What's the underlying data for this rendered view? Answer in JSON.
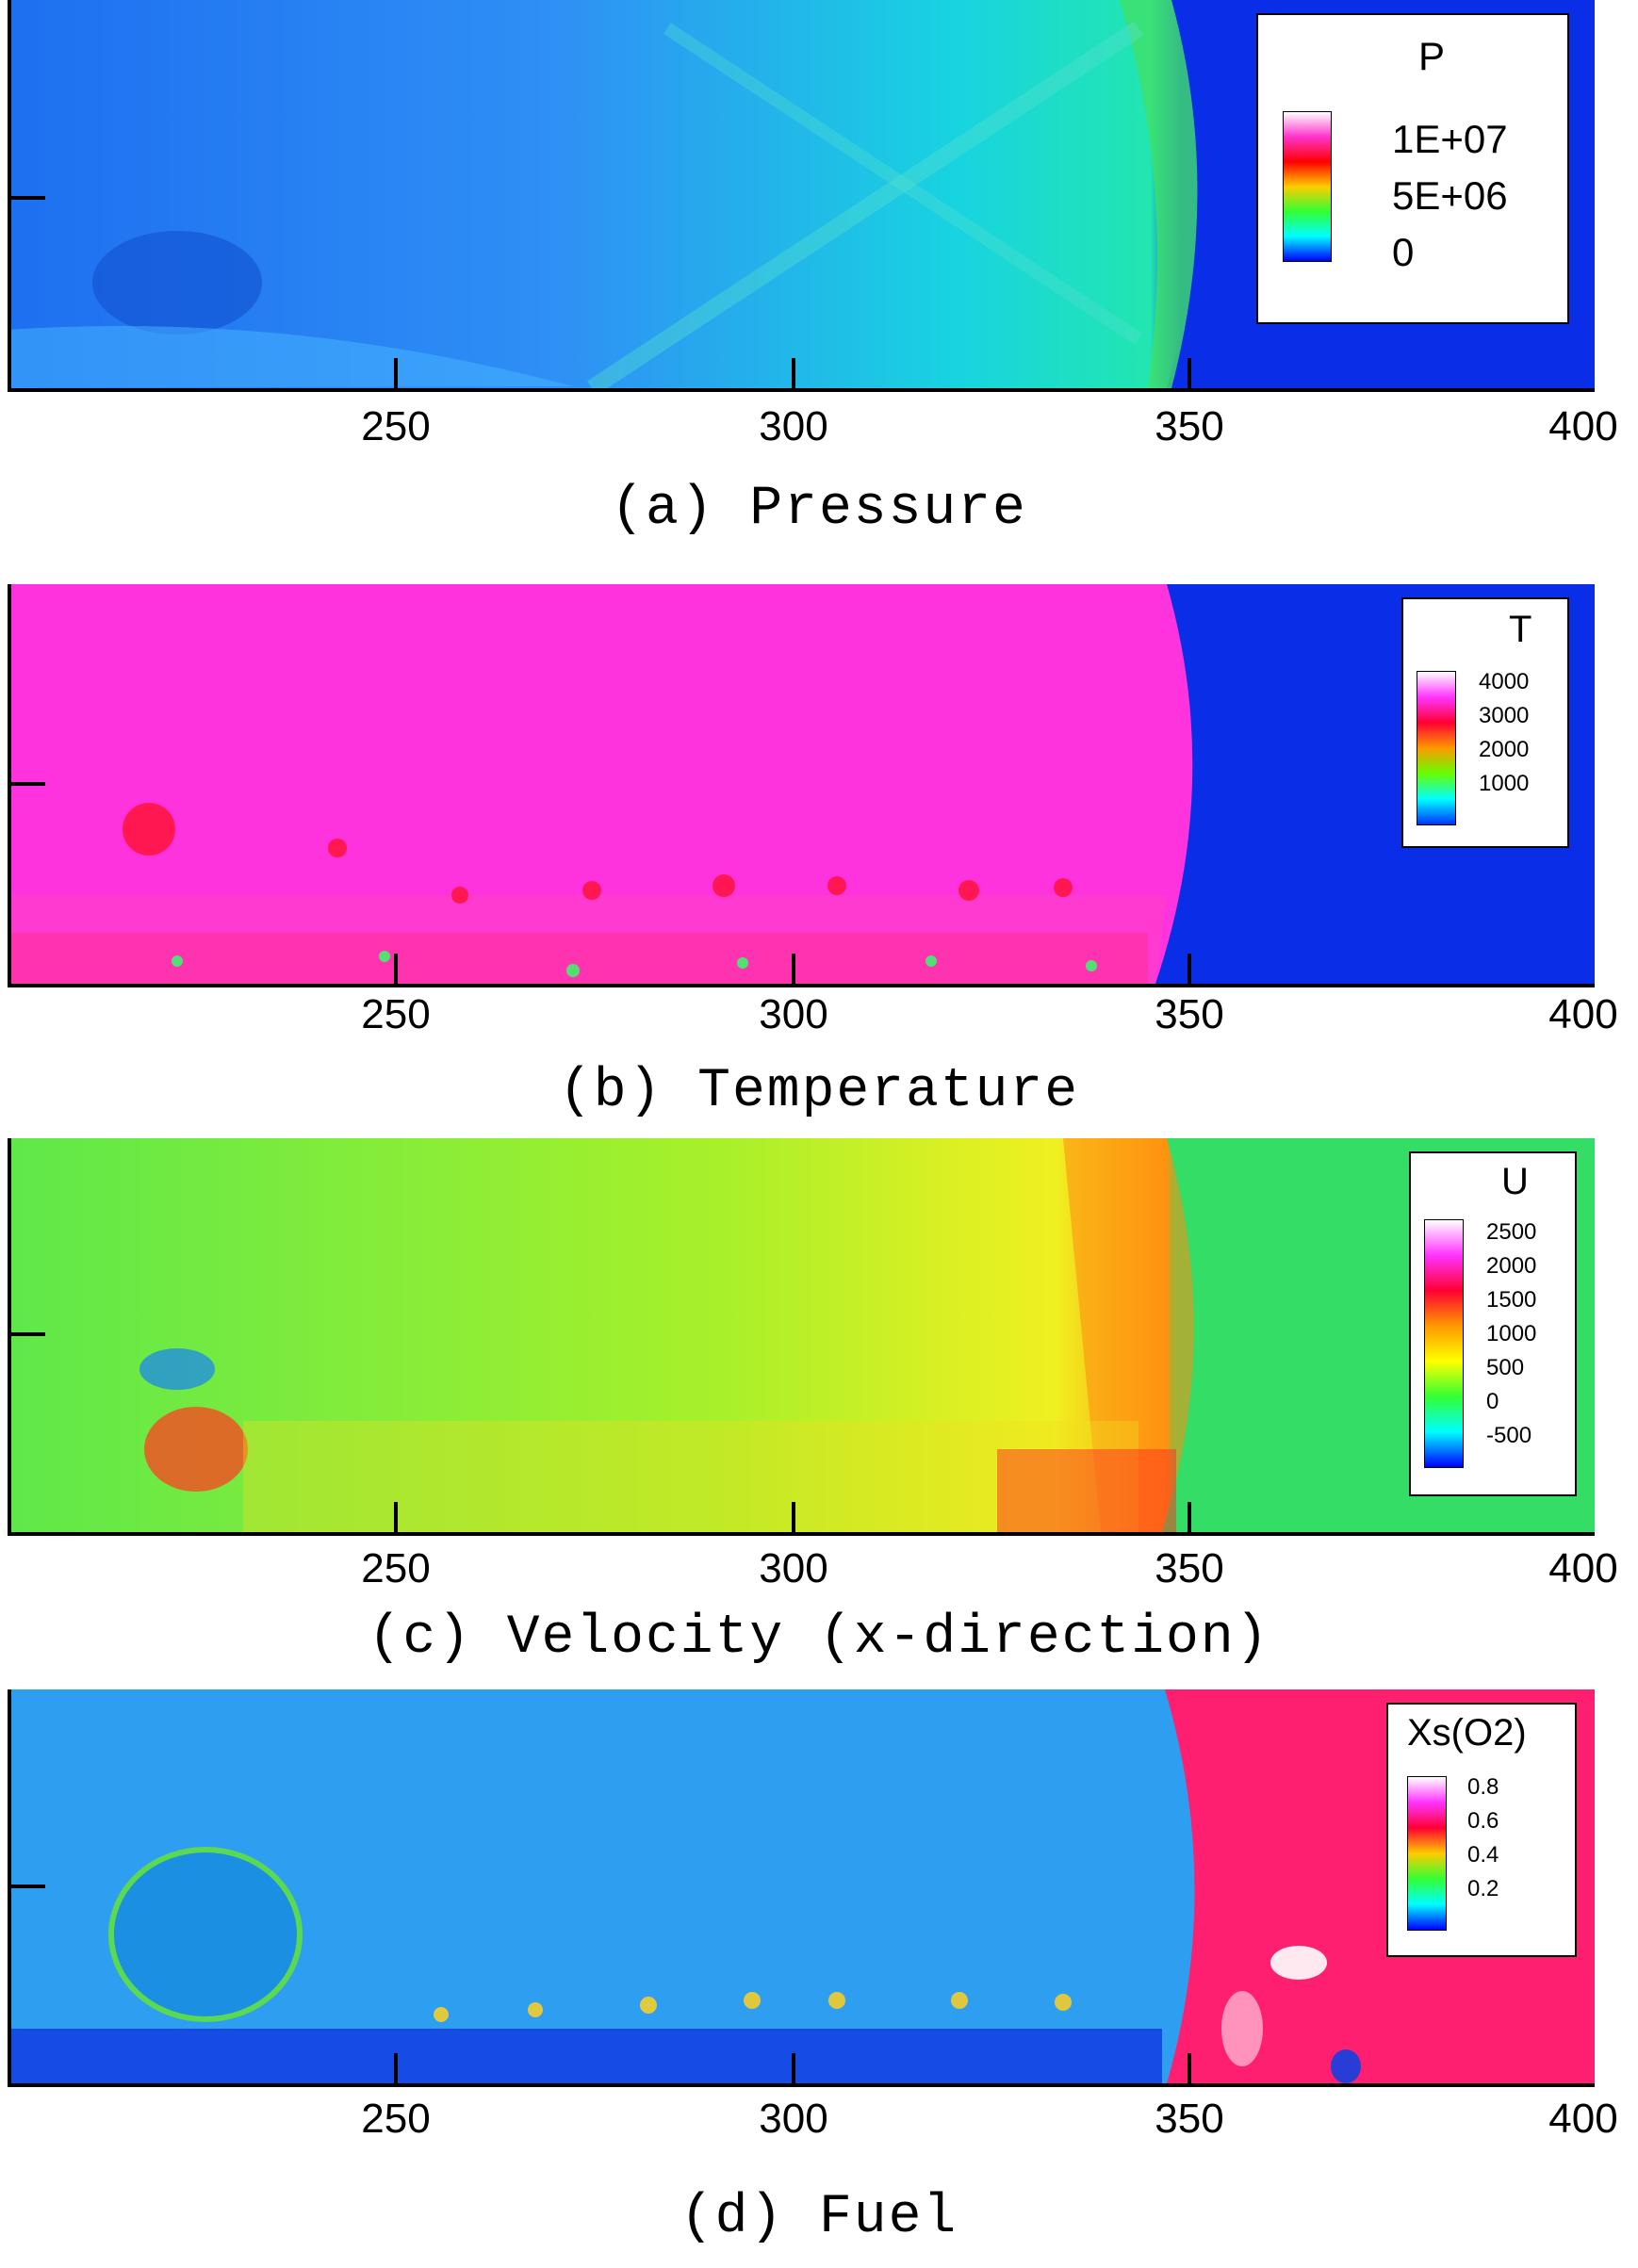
{
  "x_ticks": [
    "250",
    "300",
    "350",
    "400"
  ],
  "panels": [
    {
      "id": "a",
      "caption": "(a) Pressure",
      "legend": {
        "title": "P",
        "labels": [
          "1E+07",
          "5E+06",
          "0"
        ],
        "gradient": [
          "#ffffff",
          "#ff33cc",
          "#ff0000",
          "#ffcc00",
          "#33ff33",
          "#00ffff",
          "#0000ff"
        ]
      },
      "colors": {
        "background": "#3a9bf0",
        "right": "#0a2ee8"
      }
    },
    {
      "id": "b",
      "caption": "(b) Temperature",
      "legend": {
        "title": "T",
        "labels": [
          "4000",
          "3000",
          "2000",
          "1000"
        ],
        "gradient": [
          "#ffffff",
          "#ff33ff",
          "#ff0033",
          "#ff9900",
          "#66ff00",
          "#00ffff",
          "#0033ff"
        ]
      },
      "colors": {
        "background": "#ff33dd",
        "right": "#0a2ee8"
      }
    },
    {
      "id": "c",
      "caption": "(c) Velocity (x-direction)",
      "legend": {
        "title": "U",
        "labels": [
          "2500",
          "2000",
          "1500",
          "1000",
          "500",
          "0",
          "-500"
        ],
        "gradient": [
          "#ffffff",
          "#ff33ff",
          "#ff0033",
          "#ff9900",
          "#ffff00",
          "#33ff33",
          "#00ffff",
          "#0000ff"
        ]
      },
      "colors": {
        "background": "#7ef030",
        "right": "#33dd66"
      }
    },
    {
      "id": "d",
      "caption": "(d) Fuel",
      "legend": {
        "title": "Xs(O2)",
        "labels": [
          "0.8",
          "0.6",
          "0.4",
          "0.2"
        ],
        "gradient": [
          "#ffffff",
          "#ff33ff",
          "#ff0033",
          "#ffcc00",
          "#33ff33",
          "#00ffff",
          "#0000ff"
        ]
      },
      "colors": {
        "background": "#2e9ff0",
        "right": "#ff1f70"
      }
    }
  ]
}
